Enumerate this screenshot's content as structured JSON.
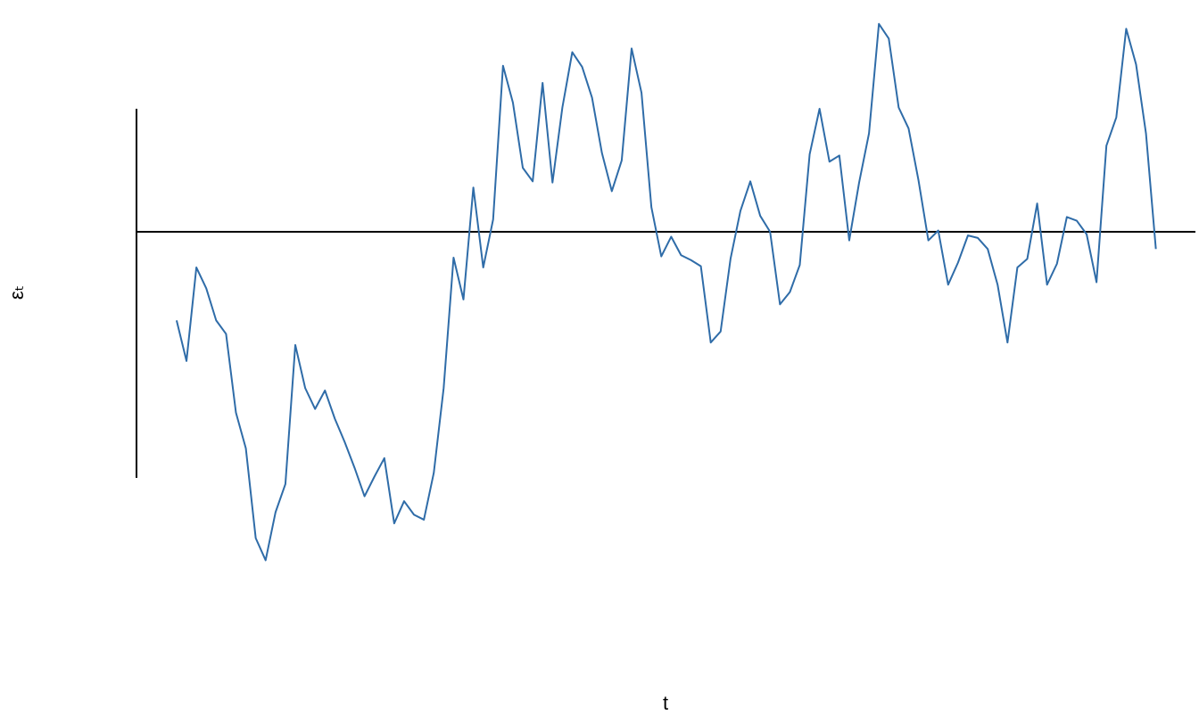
{
  "chart_data": {
    "type": "line",
    "xlabel": "t",
    "ylabel": "εₜ",
    "x": [
      1,
      2,
      3,
      4,
      5,
      6,
      7,
      8,
      9,
      10,
      11,
      12,
      13,
      14,
      15,
      16,
      17,
      18,
      19,
      20,
      21,
      22,
      23,
      24,
      25,
      26,
      27,
      28,
      29,
      30,
      31,
      32,
      33,
      34,
      35,
      36,
      37,
      38,
      39,
      40,
      41,
      42,
      43,
      44,
      45,
      46,
      47,
      48,
      49,
      50,
      51,
      52,
      53,
      54,
      55,
      56,
      57,
      58,
      59,
      60,
      61,
      62,
      63,
      64,
      65,
      66,
      67,
      68,
      69,
      70,
      71,
      72,
      73,
      74,
      75,
      76,
      77,
      78,
      79,
      80,
      81,
      82,
      83,
      84,
      85,
      86,
      87,
      88,
      89,
      90,
      91,
      92,
      93,
      94,
      95,
      96,
      97,
      98,
      99,
      100
    ],
    "series": [
      {
        "name": "εₜ",
        "color": "#2f6ca8",
        "values": [
          -0.72,
          -1.05,
          -0.29,
          -0.46,
          -0.72,
          -0.83,
          -1.47,
          -1.76,
          -2.49,
          -2.67,
          -2.28,
          -2.05,
          -0.92,
          -1.27,
          -1.44,
          -1.29,
          -1.52,
          -1.71,
          -1.92,
          -2.15,
          -1.99,
          -1.84,
          -2.37,
          -2.19,
          -2.3,
          -2.34,
          -1.96,
          -1.27,
          -0.21,
          -0.55,
          0.36,
          -0.29,
          0.1,
          1.35,
          1.05,
          0.52,
          0.41,
          1.21,
          0.4,
          1.01,
          1.46,
          1.34,
          1.09,
          0.64,
          0.33,
          0.58,
          1.49,
          1.13,
          0.2,
          -0.2,
          -0.04,
          -0.19,
          -0.23,
          -0.28,
          -0.9,
          -0.81,
          -0.22,
          0.17,
          0.41,
          0.13,
          0.0,
          -0.59,
          -0.49,
          -0.27,
          0.63,
          1.0,
          0.57,
          0.62,
          -0.07,
          0.4,
          0.8,
          1.69,
          1.57,
          1.01,
          0.84,
          0.42,
          -0.07,
          0.01,
          -0.43,
          -0.25,
          -0.03,
          -0.05,
          -0.14,
          -0.43,
          -0.9,
          -0.29,
          -0.22,
          0.23,
          -0.43,
          -0.26,
          0.12,
          0.09,
          -0.02,
          -0.41,
          0.7,
          0.93,
          1.65,
          1.36,
          0.8,
          -0.14
        ]
      }
    ],
    "xlim": [
      -3,
      104
    ],
    "ylim": [
      -2.75,
      1.75
    ]
  }
}
